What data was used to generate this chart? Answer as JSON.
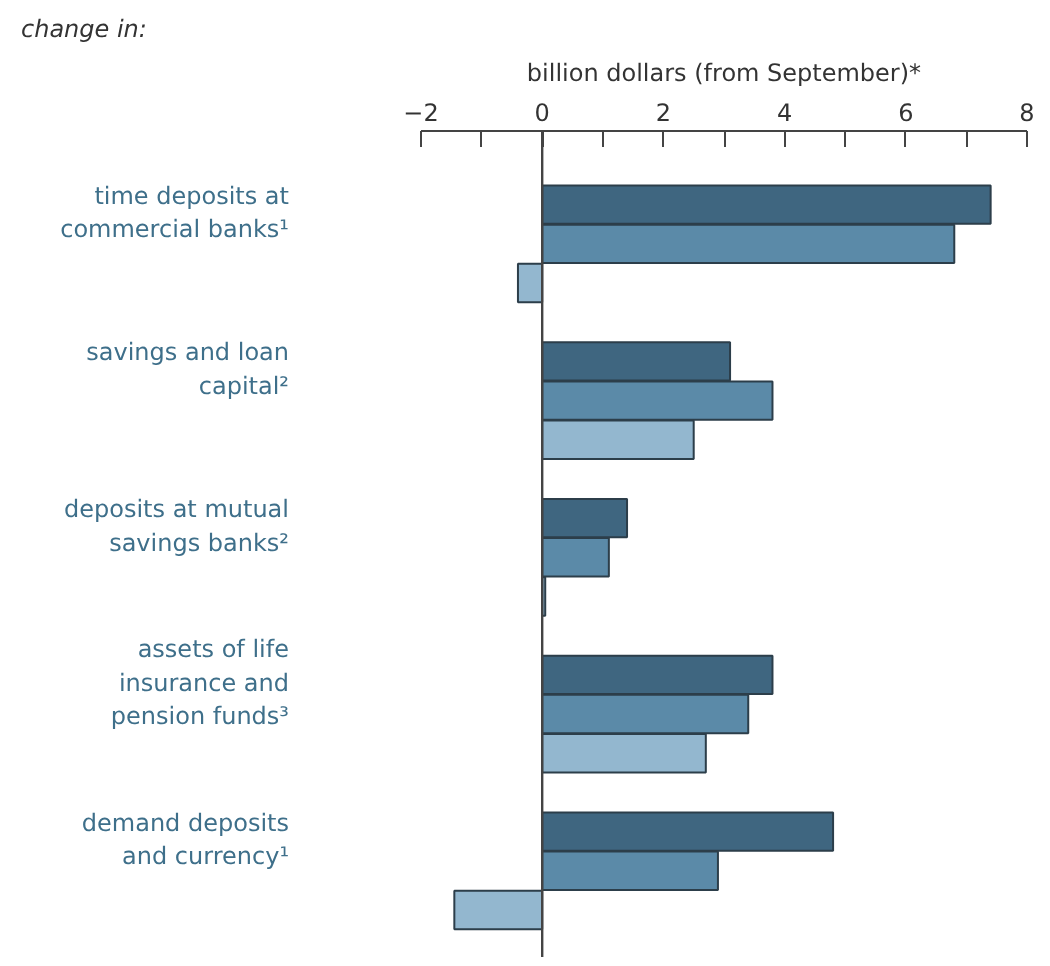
{
  "chart_data": {
    "type": "bar",
    "orientation": "horizontal",
    "xlabel": "billion dollars (from September)*",
    "categories": [
      "time deposits at\ncommercial banks¹",
      "savings and loan\ncapital²",
      "deposits at mutual\nsavings banks²",
      "assets of life\ninsurance and\npension funds³",
      "demand deposits\nand currency¹"
    ],
    "series": [
      {
        "color": "#3f6680",
        "values": [
          7.4,
          3.1,
          1.4,
          3.8,
          4.8
        ]
      },
      {
        "color": "#5b8aa8",
        "values": [
          6.8,
          3.8,
          1.1,
          3.4,
          2.9
        ]
      },
      {
        "color": "#93b7cf",
        "values": [
          -0.4,
          2.5,
          0.05,
          2.7,
          -1.45
        ]
      }
    ],
    "xlim": [
      -2,
      8
    ],
    "xticks": [
      -2,
      {
        "value": -1,
        "label": null
      },
      0,
      {
        "value": 1,
        "label": null
      },
      2,
      {
        "value": 3,
        "label": null
      },
      4,
      {
        "value": 5,
        "label": null
      },
      6,
      {
        "value": 7,
        "label": null
      },
      8
    ],
    "ref_lines": [
      {
        "axis": "x",
        "value": 0
      }
    ],
    "annotations": [
      "change in:"
    ],
    "grid": false
  }
}
